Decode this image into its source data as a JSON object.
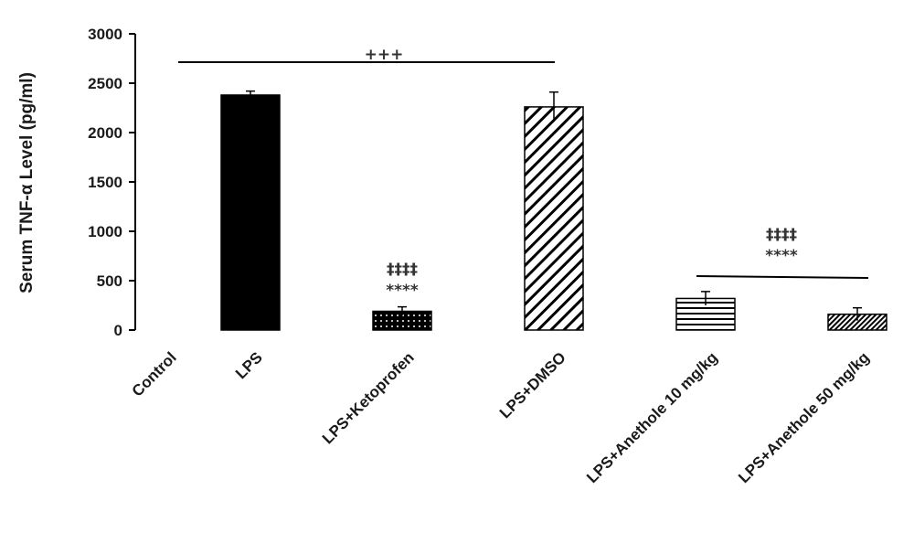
{
  "chart_data": {
    "type": "bar",
    "ylabel": "Serum TNF-α Level (pg/ml)",
    "xlabel": "",
    "ylim": [
      0,
      3000
    ],
    "yticks": [
      "0",
      "500",
      "1000",
      "1500",
      "2000",
      "2500",
      "3000"
    ],
    "grid": false,
    "categories": [
      "Control",
      "LPS",
      "LPS+Ketoprofen",
      "LPS+DMSO",
      "LPS+Anethole 10 mg/kg",
      "LPS+Anethole 50 mg/kg"
    ],
    "values": [
      0,
      2380,
      190,
      2260,
      320,
      160
    ],
    "errors": [
      0,
      40,
      45,
      150,
      70,
      65
    ],
    "fills": [
      "solid",
      "solid",
      "dots",
      "diagonal",
      "horizontal",
      "dense-diagonal"
    ],
    "annotations": {
      "top_bracket": {
        "label": "+++",
        "from": "Control",
        "to": "LPS+DMSO",
        "level": 2700
      },
      "ketoprofen_line1": "‡‡‡‡",
      "ketoprofen_line2": "****",
      "anethole_bracket": {
        "from": "LPS+Anethole 10 mg/kg",
        "to": "LPS+Anethole 50 mg/kg",
        "level": 530
      },
      "anethole_line1": "‡‡‡‡",
      "anethole_line2": "****"
    }
  }
}
